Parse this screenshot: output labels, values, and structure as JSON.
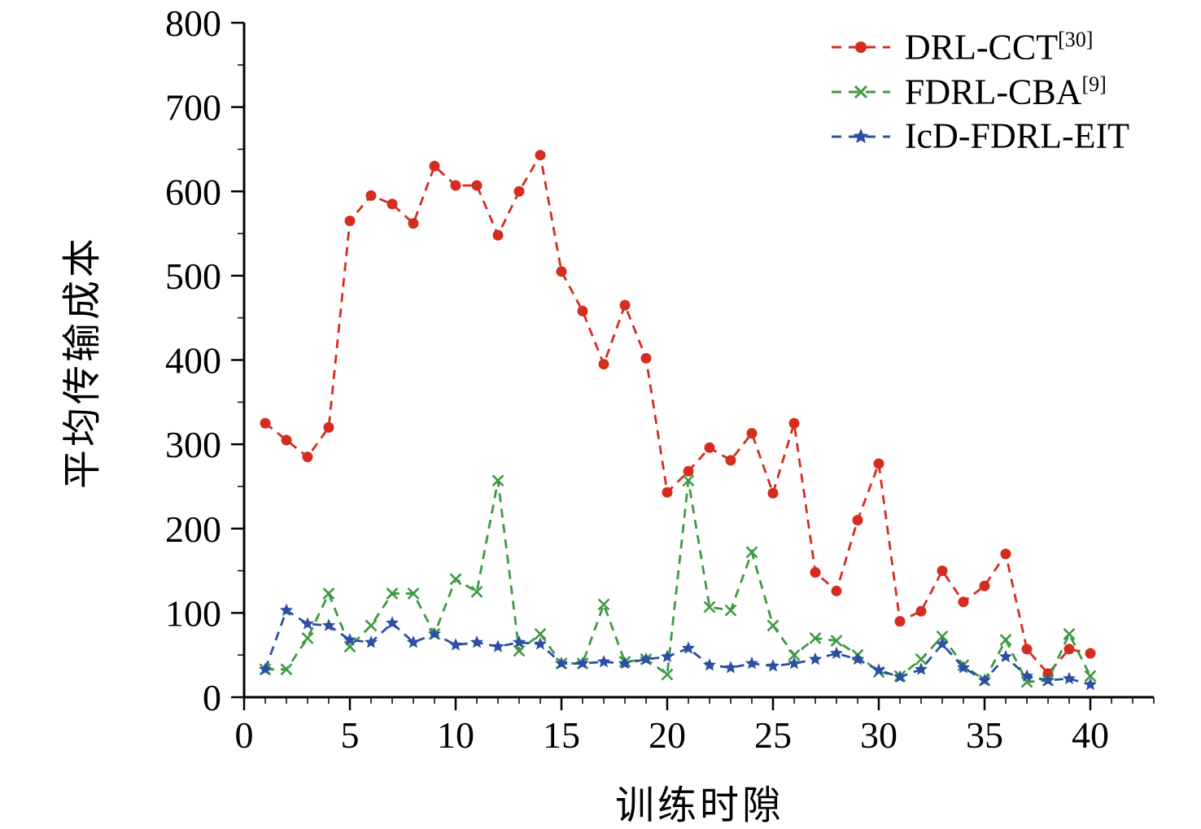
{
  "chart_data": {
    "type": "line",
    "title": "",
    "xlabel": "训练时隙",
    "ylabel": "平均传输成本",
    "xlim": [
      0,
      43
    ],
    "ylim": [
      0,
      800
    ],
    "xticks": [
      0,
      5,
      10,
      15,
      20,
      25,
      30,
      35,
      40
    ],
    "yticks": [
      0,
      100,
      200,
      300,
      400,
      500,
      600,
      700,
      800
    ],
    "x_minor_step": 1,
    "y_minor_step": 50,
    "grid": false,
    "legend_position": "upper right",
    "x": [
      1,
      2,
      3,
      4,
      5,
      6,
      7,
      8,
      9,
      10,
      11,
      12,
      13,
      14,
      15,
      16,
      17,
      18,
      19,
      20,
      21,
      22,
      23,
      24,
      25,
      26,
      27,
      28,
      29,
      30,
      31,
      32,
      33,
      34,
      35,
      36,
      37,
      38,
      39,
      40
    ],
    "series": [
      {
        "name": "DRL-CCT[30]",
        "label": "DRL-CCT",
        "sup": "[30]",
        "color": "#d62b1f",
        "marker": "circle",
        "linestyle": "dashed",
        "values": [
          325,
          305,
          285,
          320,
          565,
          595,
          585,
          562,
          630,
          607,
          607,
          548,
          600,
          643,
          505,
          458,
          395,
          465,
          402,
          243,
          268,
          296,
          281,
          313,
          242,
          325,
          148,
          126,
          210,
          277,
          90,
          102,
          150,
          113,
          132,
          170,
          57,
          28,
          57,
          52
        ]
      },
      {
        "name": "FDRL-CBA[9]",
        "label": "FDRL-CBA",
        "sup": "[9]",
        "color": "#3d9a40",
        "marker": "x",
        "linestyle": "dashed",
        "values": [
          33,
          33,
          70,
          123,
          60,
          85,
          123,
          123,
          75,
          140,
          125,
          257,
          55,
          75,
          40,
          40,
          110,
          42,
          45,
          27,
          257,
          107,
          103,
          172,
          85,
          50,
          70,
          67,
          50,
          30,
          25,
          45,
          72,
          38,
          20,
          68,
          18,
          20,
          75,
          25
        ]
      },
      {
        "name": "IcD-FDRL-EIT",
        "label": "IcD-FDRL-EIT",
        "sup": "",
        "color": "#2c4fa3",
        "marker": "star",
        "linestyle": "dashed",
        "values": [
          33,
          103,
          87,
          85,
          68,
          65,
          88,
          65,
          75,
          62,
          65,
          60,
          65,
          63,
          40,
          40,
          42,
          40,
          45,
          48,
          58,
          38,
          35,
          40,
          37,
          40,
          45,
          52,
          45,
          32,
          24,
          33,
          63,
          35,
          20,
          48,
          25,
          20,
          22,
          15
        ]
      }
    ]
  }
}
